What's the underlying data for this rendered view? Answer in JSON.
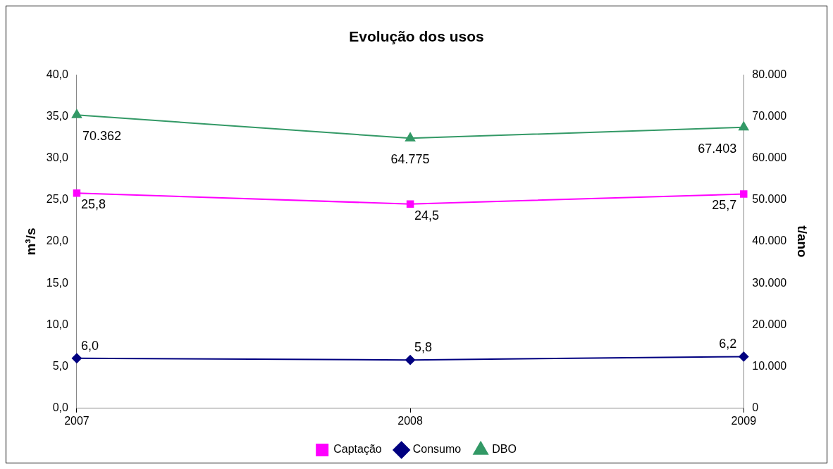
{
  "chart_data": {
    "type": "line",
    "title": "Evolução dos usos",
    "ylabel": "m³/s",
    "y2label": "t/ano",
    "categories": [
      "2007",
      "2008",
      "2009"
    ],
    "series": [
      {
        "name": "Captação",
        "color": "#ff00ff",
        "marker": "square",
        "values": [
          25.8,
          24.5,
          25.7
        ],
        "value_labels": [
          "25,8",
          "24,5",
          "25,7"
        ]
      },
      {
        "name": "Consumo",
        "color": "#000080",
        "marker": "diamond",
        "values": [
          6.0,
          5.8,
          6.2
        ],
        "value_labels": [
          "6,0",
          "5,8",
          "6,2"
        ]
      },
      {
        "name": "DBO",
        "color": "#339966",
        "marker": "triangle",
        "axis": "y2",
        "values": [
          70362,
          64775,
          67403
        ],
        "value_labels": [
          "70.362",
          "64.775",
          "67.403"
        ]
      }
    ],
    "ylim": [
      0,
      40
    ],
    "yticks": [
      {
        "value": 0,
        "label": "0,0"
      },
      {
        "value": 5,
        "label": "5,0"
      },
      {
        "value": 10,
        "label": "10,0"
      },
      {
        "value": 15,
        "label": "15,0"
      },
      {
        "value": 20,
        "label": "20,0"
      },
      {
        "value": 25,
        "label": "25,0"
      },
      {
        "value": 30,
        "label": "30,0"
      },
      {
        "value": 35,
        "label": "35,0"
      },
      {
        "value": 40,
        "label": "40,0"
      }
    ],
    "y2lim": [
      0,
      80000
    ],
    "y2ticks": [
      0,
      {
        "value": 10000,
        "label": "10.000"
      },
      {
        "value": 20000,
        "label": "20.000"
      },
      {
        "value": 30000,
        "label": "30.000"
      },
      {
        "value": 40000,
        "label": "40.000"
      },
      {
        "value": 50000,
        "label": "50.000"
      },
      {
        "value": 60000,
        "label": "60.000"
      },
      {
        "value": 70000,
        "label": "70.000"
      },
      {
        "value": 80000,
        "label": "80.000"
      }
    ],
    "grid": false,
    "legend": "bottom",
    "line_style": "solid"
  }
}
